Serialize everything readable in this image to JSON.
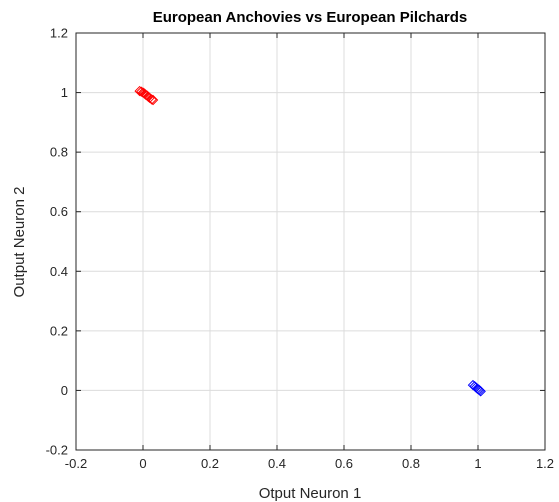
{
  "chart_data": {
    "type": "scatter",
    "title": "European Anchovies vs European Pilchards",
    "xlabel": "Otput Neuron 1",
    "ylabel": "Output Neuron 2",
    "xlim": [
      -0.2,
      1.2
    ],
    "ylim": [
      -0.2,
      1.2
    ],
    "x_ticks": [
      -0.2,
      0,
      0.2,
      0.4,
      0.6,
      0.8,
      1,
      1.2
    ],
    "y_ticks": [
      -0.2,
      0,
      0.2,
      0.4,
      0.6,
      0.8,
      1,
      1.2
    ],
    "x_tick_labels": [
      "-0.2",
      "0",
      "0.2",
      "0.4",
      "0.6",
      "0.8",
      "1",
      "1.2"
    ],
    "y_tick_labels": [
      "-0.2",
      "0",
      "0.2",
      "0.4",
      "0.6",
      "0.8",
      "1",
      "1.2"
    ],
    "grid": true,
    "marker": "diamond-open",
    "series": [
      {
        "color": "#ff0000",
        "points": [
          {
            "x": -0.01,
            "y": 1.005
          },
          {
            "x": -0.005,
            "y": 1.003
          },
          {
            "x": 0.0,
            "y": 1.0
          },
          {
            "x": 0.003,
            "y": 0.998
          },
          {
            "x": 0.006,
            "y": 0.995
          },
          {
            "x": 0.009,
            "y": 0.992
          },
          {
            "x": 0.012,
            "y": 0.99
          },
          {
            "x": 0.016,
            "y": 0.986
          },
          {
            "x": 0.02,
            "y": 0.982
          },
          {
            "x": 0.026,
            "y": 0.977
          },
          {
            "x": 0.03,
            "y": 0.975
          }
        ]
      },
      {
        "color": "#0000ff",
        "points": [
          {
            "x": 0.985,
            "y": 0.018
          },
          {
            "x": 0.99,
            "y": 0.014
          },
          {
            "x": 0.994,
            "y": 0.01
          },
          {
            "x": 0.998,
            "y": 0.006
          },
          {
            "x": 1.002,
            "y": 0.003
          },
          {
            "x": 1.005,
            "y": 0.0
          },
          {
            "x": 1.008,
            "y": -0.003
          }
        ]
      }
    ]
  }
}
